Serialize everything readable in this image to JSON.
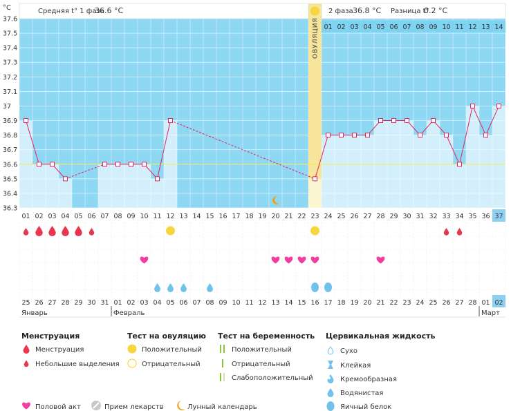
{
  "header": {
    "unit": "°C",
    "phase1_label": "Средняя t° 1 фаза",
    "phase1_value": "36.6 °C",
    "phase2_label": "2 фаза",
    "phase2_value": "36.8 °C",
    "diff_label": "Разница t°",
    "diff_value": "0.2 °C",
    "ovulation_label": "ОВУЛЯЦИЯ"
  },
  "chart_data": {
    "type": "line",
    "y_ticks": [
      "37.6",
      "37.5",
      "37.4",
      "37.3",
      "37.2",
      "37.1",
      "37",
      "36.9",
      "36.8",
      "36.7",
      "36.6",
      "36.5",
      "36.4",
      "36.3"
    ],
    "ylim": [
      36.3,
      37.6
    ],
    "cycle_days": [
      "01",
      "02",
      "03",
      "04",
      "05",
      "06",
      "07",
      "08",
      "09",
      "10",
      "11",
      "12",
      "13",
      "14",
      "15",
      "16",
      "17",
      "18",
      "19",
      "20",
      "21",
      "22",
      "23",
      "24",
      "25",
      "26",
      "27",
      "28",
      "29",
      "30",
      "31",
      "32",
      "33",
      "34",
      "35",
      "36",
      "37"
    ],
    "phase2_day_numbers": [
      "01",
      "02",
      "03",
      "04",
      "05",
      "06",
      "07",
      "08",
      "09",
      "10",
      "11",
      "12",
      "13",
      "14"
    ],
    "dates": [
      "25",
      "26",
      "27",
      "28",
      "29",
      "30",
      "31",
      "01",
      "02",
      "03",
      "04",
      "05",
      "06",
      "07",
      "08",
      "09",
      "10",
      "11",
      "12",
      "13",
      "14",
      "15",
      "16",
      "17",
      "18",
      "19",
      "20",
      "21",
      "22",
      "23",
      "24",
      "25",
      "26",
      "27",
      "28",
      "01",
      "02"
    ],
    "weekend_dates_idx": [
      5,
      6,
      7,
      12,
      13,
      14,
      19,
      20,
      21,
      26,
      27,
      28,
      33,
      34
    ],
    "months": [
      {
        "name": "Январь",
        "start_index": 0
      },
      {
        "name": "Февраль",
        "start_index": 7
      },
      {
        "name": "Март",
        "start_index": 35
      }
    ],
    "series": [
      {
        "values": [
          36.9,
          36.6,
          36.6,
          36.5,
          null,
          null,
          36.6,
          36.6,
          36.6,
          36.6,
          36.5,
          36.9,
          null,
          null,
          null,
          null,
          null,
          null,
          null,
          null,
          null,
          null,
          36.5,
          36.8,
          36.8,
          36.8,
          36.8,
          36.9,
          36.9,
          36.9,
          36.8,
          36.9,
          36.8,
          36.6,
          37.0,
          36.8,
          37.0
        ]
      }
    ],
    "average_line": 36.6,
    "ovulation_day": 23,
    "menstruation": {
      "heavy_days": [
        2,
        3,
        4,
        5
      ],
      "light_days": [
        1,
        6,
        33,
        34
      ]
    },
    "ovulation_test_positive_days": [
      12,
      23
    ],
    "intercourse_days": [
      10,
      20,
      21,
      22,
      23,
      28
    ],
    "cervical_fluid": {
      "watery_days": [
        11,
        12,
        13,
        15
      ],
      "egg_white_days": [
        23,
        24
      ]
    },
    "lunar_day": 20
  },
  "legend": {
    "menstruation": {
      "title": "Менструация",
      "items": [
        "Менструация",
        "Небольшие выделения"
      ]
    },
    "ovulation_test": {
      "title": "Тест на овуляцию",
      "items": [
        "Положительный",
        "Отрицательный"
      ]
    },
    "pregnancy_test": {
      "title": "Тест на беременность",
      "items": [
        "Положительный",
        "Отрицательный",
        "Слабоположительный"
      ]
    },
    "cervical_fluid": {
      "title": "Цервикальная жидкость",
      "items": [
        "Сухо",
        "Клейкая",
        "Кремообразная",
        "Водянистая",
        "Яичный белок"
      ]
    },
    "bottom": [
      "Половой акт",
      "Прием лекарств",
      "Лунный календарь"
    ]
  },
  "colors": {
    "sky": "#8ed8f4",
    "lower": "#d3effb",
    "ovulation": "#f6e59a",
    "line": "#e0245e",
    "blood": "#e8384f",
    "heart": "#f03ea0",
    "yellow": "#f7d53f",
    "water": "#70c2ec",
    "moon": "#f0a020",
    "green": "#8cc63e"
  }
}
